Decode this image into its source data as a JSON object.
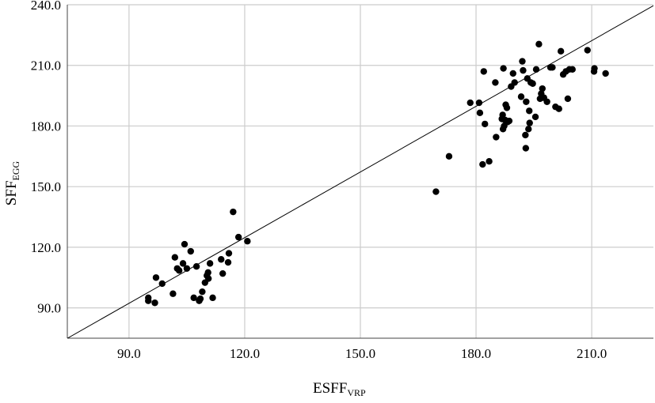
{
  "chart_data": {
    "type": "scatter",
    "title": "",
    "xlabel": "ESFF",
    "xlabel_subscript": "VRP",
    "ylabel": "SFF",
    "ylabel_subscript": "EGG",
    "xlim": [
      74,
      226
    ],
    "ylim": [
      75,
      240
    ],
    "xticks": [
      90.0,
      120.0,
      150.0,
      180.0,
      210.0
    ],
    "yticks": [
      90.0,
      120.0,
      150.0,
      180.0,
      210.0,
      240.0
    ],
    "xtick_labels": [
      "90.0",
      "120.0",
      "150.0",
      "180.0",
      "210.0"
    ],
    "ytick_labels": [
      "90.0",
      "120.0",
      "150.0",
      "180.0",
      "210.0",
      "240.0"
    ],
    "grid": true,
    "legend": "none",
    "fit_line": {
      "slope": 1.083,
      "intercept": -5.2,
      "x_range": [
        74,
        226
      ]
    },
    "marker_color": "#000000",
    "line_color": "#000000",
    "grid_color": "#cccccc",
    "points": [
      [
        95.0,
        93.5
      ],
      [
        95.0,
        95.0
      ],
      [
        96.7,
        92.5
      ],
      [
        97.0,
        105.0
      ],
      [
        98.6,
        102.0
      ],
      [
        101.4,
        97.0
      ],
      [
        101.9,
        115.0
      ],
      [
        102.5,
        109.5
      ],
      [
        103.0,
        108.5
      ],
      [
        104.0,
        112.0
      ],
      [
        104.4,
        121.5
      ],
      [
        105.0,
        109.5
      ],
      [
        106.0,
        118.0
      ],
      [
        106.8,
        95.0
      ],
      [
        107.5,
        110.5
      ],
      [
        108.2,
        93.5
      ],
      [
        108.5,
        94.5
      ],
      [
        109.0,
        98.0
      ],
      [
        109.7,
        102.5
      ],
      [
        110.2,
        106.0
      ],
      [
        110.5,
        107.5
      ],
      [
        110.6,
        104.5
      ],
      [
        111.0,
        112.0
      ],
      [
        111.7,
        95.0
      ],
      [
        113.9,
        114.0
      ],
      [
        114.3,
        107.0
      ],
      [
        115.7,
        112.5
      ],
      [
        115.9,
        117.0
      ],
      [
        117.0,
        137.5
      ],
      [
        118.4,
        125.0
      ],
      [
        120.7,
        123.0
      ],
      [
        169.6,
        147.5
      ],
      [
        173.0,
        165.0
      ],
      [
        178.5,
        191.5
      ],
      [
        180.8,
        191.5
      ],
      [
        181.0,
        186.5
      ],
      [
        181.7,
        161.0
      ],
      [
        182.0,
        207.0
      ],
      [
        182.3,
        181.0
      ],
      [
        183.4,
        162.5
      ],
      [
        185.0,
        201.5
      ],
      [
        185.2,
        174.5
      ],
      [
        186.7,
        183.5
      ],
      [
        186.9,
        185.5
      ],
      [
        187.0,
        178.5
      ],
      [
        187.1,
        208.5
      ],
      [
        187.3,
        180.0
      ],
      [
        187.5,
        183.0
      ],
      [
        187.7,
        190.5
      ],
      [
        188.0,
        189.0
      ],
      [
        188.2,
        182.0
      ],
      [
        188.6,
        182.5
      ],
      [
        189.1,
        199.5
      ],
      [
        189.6,
        206.0
      ],
      [
        190.0,
        201.5
      ],
      [
        191.7,
        194.5
      ],
      [
        192.0,
        212.0
      ],
      [
        192.2,
        207.5
      ],
      [
        192.8,
        175.5
      ],
      [
        192.9,
        169.0
      ],
      [
        193.0,
        192.0
      ],
      [
        193.3,
        203.5
      ],
      [
        193.6,
        178.5
      ],
      [
        193.8,
        187.5
      ],
      [
        193.9,
        181.5
      ],
      [
        194.2,
        201.5
      ],
      [
        194.7,
        201.0
      ],
      [
        195.4,
        184.5
      ],
      [
        195.6,
        208.0
      ],
      [
        196.3,
        220.5
      ],
      [
        196.6,
        193.5
      ],
      [
        196.9,
        196.0
      ],
      [
        197.2,
        198.5
      ],
      [
        197.6,
        194.0
      ],
      [
        198.4,
        192.0
      ],
      [
        199.3,
        209.0
      ],
      [
        199.8,
        209.0
      ],
      [
        200.6,
        189.5
      ],
      [
        201.5,
        188.5
      ],
      [
        202.0,
        217.0
      ],
      [
        202.6,
        205.5
      ],
      [
        203.3,
        207.0
      ],
      [
        203.8,
        193.5
      ],
      [
        204.2,
        208.0
      ],
      [
        205.0,
        208.0
      ],
      [
        208.9,
        217.5
      ],
      [
        210.6,
        207.0
      ],
      [
        210.7,
        208.5
      ],
      [
        213.6,
        206.0
      ]
    ]
  }
}
